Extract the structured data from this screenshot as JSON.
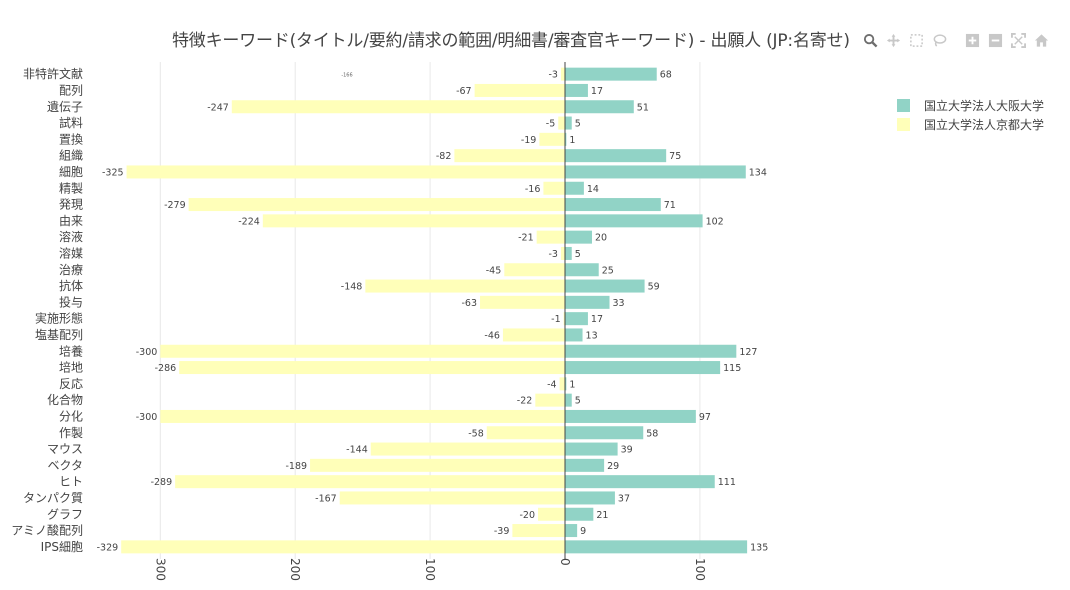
{
  "title": "特徴キーワード(タイトル/要約/請求の範囲/明細書/審査官キーワード) - 出願人 (JP:名寄せ)",
  "modebar": {
    "icons": [
      "zoom-icon",
      "pan-icon",
      "box-select-icon",
      "lasso-icon",
      "zoom-in-icon",
      "zoom-out-icon",
      "autoscale-icon",
      "reset-axes-icon"
    ]
  },
  "colors": {
    "osaka": "#91d3c6",
    "kyoto": "#ffffb9",
    "grid": "#e8e8e8",
    "zeroline": "#444444",
    "text": "#444444"
  },
  "chart_data": {
    "type": "bar",
    "orientation": "horizontal",
    "title": "特徴キーワード(タイトル/要約/請求の範囲/明細書/審査官キーワード) - 出願人 (JP:名寄せ)",
    "categories": [
      "非特許文献",
      "配列",
      "遺伝子",
      "試料",
      "置換",
      "組織",
      "細胞",
      "精製",
      "発現",
      "由来",
      "溶液",
      "溶媒",
      "治療",
      "抗体",
      "投与",
      "実施形態",
      "塩基配列",
      "培養",
      "培地",
      "反応",
      "化合物",
      "分化",
      "作製",
      "マウス",
      "ベクタ",
      "ヒト",
      "タンパク質",
      "グラフ",
      "アミノ酸配列",
      "IPS細胞"
    ],
    "series": [
      {
        "name": "国立大学法人大阪大学",
        "values": [
          68,
          17,
          51,
          5,
          1,
          75,
          134,
          14,
          71,
          102,
          20,
          5,
          25,
          59,
          33,
          17,
          13,
          127,
          115,
          1,
          5,
          97,
          58,
          39,
          29,
          111,
          37,
          21,
          9,
          135
        ]
      },
      {
        "name": "国立大学法人京都大学",
        "values": [
          -3,
          -67,
          -247,
          -5,
          -19,
          -82,
          -325,
          -16,
          -279,
          -224,
          -21,
          -3,
          -45,
          -148,
          -63,
          -1,
          -46,
          -300,
          -286,
          -4,
          -22,
          -300,
          -58,
          -144,
          -189,
          -289,
          -167,
          -20,
          -39,
          -329
        ]
      }
    ],
    "data_labels": {
      "osaka": [
        "68",
        "17",
        "51",
        "5",
        "1",
        "75",
        "134",
        "14",
        "71",
        "102",
        "20",
        "5",
        "25",
        "59",
        "33",
        "17",
        "13",
        "127",
        "115",
        "1",
        "5",
        "97",
        "58",
        "39",
        "29",
        "111",
        "37",
        "21",
        "9",
        "135"
      ],
      "kyoto": [
        "-3",
        "-67",
        "-247",
        "-5",
        "-19",
        "-82",
        "-325",
        "-16",
        "-279",
        "-224",
        "-21",
        "-3",
        "-45",
        "-148",
        "-63",
        "-1",
        "-46",
        "-300",
        "-286",
        "-4",
        "-22",
        "-300",
        "-58",
        "-144",
        "-189",
        "-289",
        "-167",
        "-20",
        "-39",
        "-329"
      ]
    },
    "xlim": [
      -330,
      136
    ],
    "xticks": [
      -300,
      -200,
      -100,
      0,
      100
    ],
    "xtick_labels": [
      "300",
      "200",
      "100",
      "0",
      "100"
    ],
    "grid": true,
    "legend": "top-right",
    "extra_annotation": "-166"
  }
}
